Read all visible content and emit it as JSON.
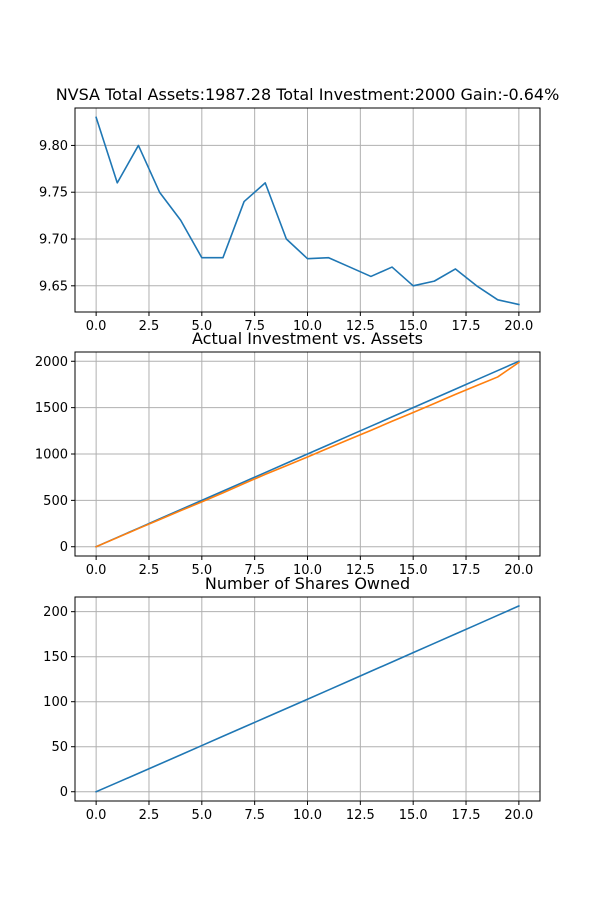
{
  "chart_data": [
    {
      "type": "line",
      "title": "NVSA Total Assets:1987.28  Total Investment:2000  Gain:-0.64%",
      "xlabel": "",
      "ylabel": "",
      "xlim": [
        -1.0,
        21.0
      ],
      "ylim": [
        9.622,
        9.84
      ],
      "xticks": [
        0.0,
        2.5,
        5.0,
        7.5,
        10.0,
        12.5,
        15.0,
        17.5,
        20.0
      ],
      "xtick_labels": [
        "0.0",
        "2.5",
        "5.0",
        "7.5",
        "10.0",
        "12.5",
        "15.0",
        "17.5",
        "20.0"
      ],
      "yticks": [
        9.65,
        9.7,
        9.75,
        9.8
      ],
      "ytick_labels": [
        "9.65",
        "9.70",
        "9.75",
        "9.80"
      ],
      "grid": true,
      "series": [
        {
          "color": "#1f77b4",
          "x": [
            0,
            1,
            2,
            3,
            4,
            5,
            6,
            7,
            8,
            9,
            10,
            11,
            12,
            13,
            14,
            15,
            16,
            17,
            18,
            19,
            20
          ],
          "values": [
            9.83,
            9.76,
            9.8,
            9.75,
            9.72,
            9.68,
            9.68,
            9.74,
            9.76,
            9.7,
            9.679,
            9.68,
            9.67,
            9.66,
            9.67,
            9.65,
            9.655,
            9.668,
            9.65,
            9.635,
            9.63
          ]
        }
      ]
    },
    {
      "type": "line",
      "title": "Actual Investment vs. Assets",
      "xlabel": "",
      "ylabel": "",
      "xlim": [
        -1.0,
        21.0
      ],
      "ylim": [
        -100,
        2100
      ],
      "xticks": [
        0.0,
        2.5,
        5.0,
        7.5,
        10.0,
        12.5,
        15.0,
        17.5,
        20.0
      ],
      "xtick_labels": [
        "0.0",
        "2.5",
        "5.0",
        "7.5",
        "10.0",
        "12.5",
        "15.0",
        "17.5",
        "20.0"
      ],
      "yticks": [
        0,
        500,
        1000,
        1500,
        2000
      ],
      "ytick_labels": [
        "0",
        "500",
        "1000",
        "1500",
        "2000"
      ],
      "grid": true,
      "series": [
        {
          "color": "#1f77b4",
          "x": [
            0,
            1,
            2,
            3,
            4,
            5,
            6,
            7,
            8,
            9,
            10,
            11,
            12,
            13,
            14,
            15,
            16,
            17,
            18,
            19,
            20
          ],
          "values": [
            0,
            100,
            200,
            300,
            400,
            500,
            600,
            700,
            800,
            900,
            1000,
            1100,
            1200,
            1300,
            1400,
            1500,
            1600,
            1700,
            1800,
            1900,
            2000
          ]
        },
        {
          "color": "#ff7f0e",
          "x": [
            0,
            1,
            2,
            3,
            4,
            5,
            6,
            7,
            8,
            9,
            10,
            11,
            12,
            13,
            14,
            15,
            16,
            17,
            18,
            19,
            20
          ],
          "values": [
            0,
            97.6,
            196.0,
            292.5,
            388.8,
            484.0,
            580.8,
            681.8,
            780.8,
            873.0,
            967.9,
            1065.0,
            1160.0,
            1255.0,
            1353.0,
            1448.0,
            1545.0,
            1643.0,
            1737.0,
            1831.0,
            1987.28
          ]
        }
      ]
    },
    {
      "type": "line",
      "title": "Number of Shares Owned",
      "xlabel": "",
      "ylabel": "",
      "xlim": [
        -1.0,
        21.0
      ],
      "ylim": [
        -10.3,
        216.3
      ],
      "xticks": [
        0.0,
        2.5,
        5.0,
        7.5,
        10.0,
        12.5,
        15.0,
        17.5,
        20.0
      ],
      "xtick_labels": [
        "0.0",
        "2.5",
        "5.0",
        "7.5",
        "10.0",
        "12.5",
        "15.0",
        "17.5",
        "20.0"
      ],
      "yticks": [
        0,
        50,
        100,
        150,
        200
      ],
      "ytick_labels": [
        "0",
        "50",
        "100",
        "150",
        "200"
      ],
      "grid": true,
      "series": [
        {
          "color": "#1f77b4",
          "x": [
            0,
            1,
            2,
            3,
            4,
            5,
            6,
            7,
            8,
            9,
            10,
            11,
            12,
            13,
            14,
            15,
            16,
            17,
            18,
            19,
            20
          ],
          "values": [
            0,
            10.17,
            20.37,
            30.64,
            40.96,
            51.29,
            61.62,
            71.89,
            82.13,
            92.42,
            102.75,
            113.08,
            123.43,
            133.8,
            144.14,
            154.51,
            164.87,
            175.21,
            185.57,
            195.97,
            206.35
          ]
        }
      ]
    }
  ]
}
